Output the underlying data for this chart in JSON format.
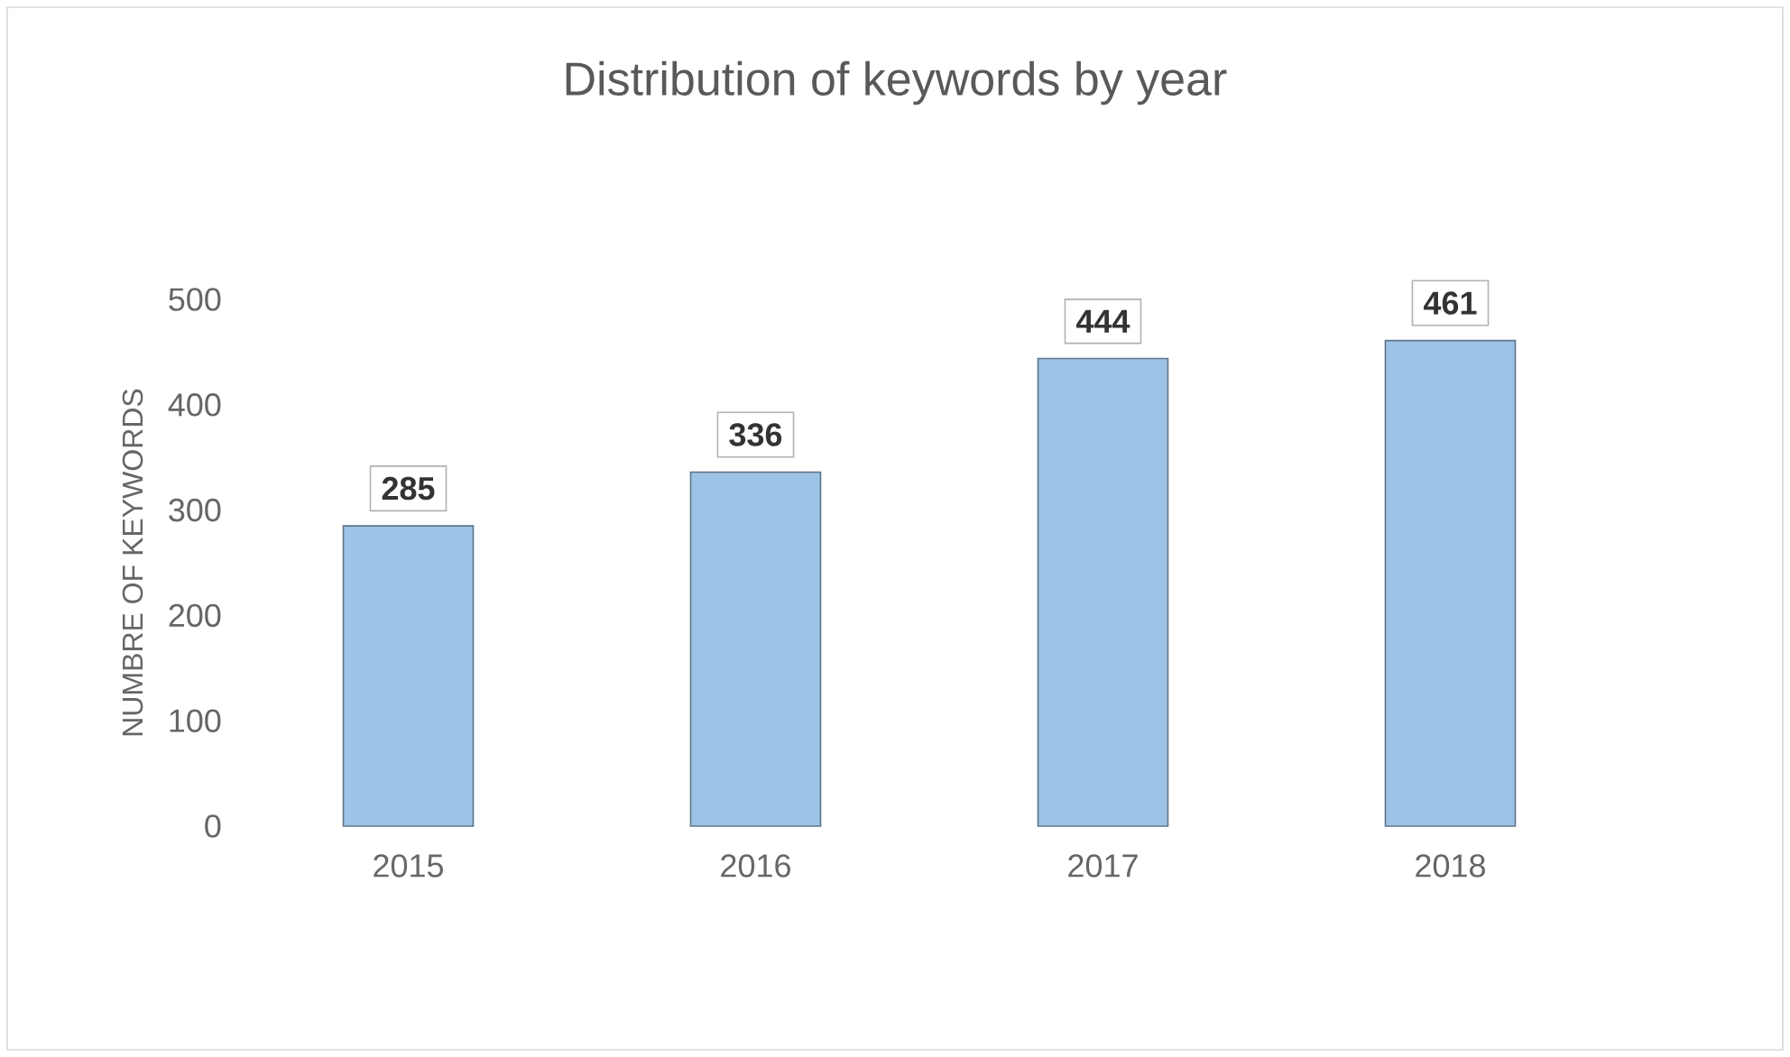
{
  "chart_data": {
    "type": "bar",
    "title": "Distribution  of keywords by year",
    "ylabel": "NUMBRE OF KEYWORDS",
    "categories": [
      "2015",
      "2016",
      "2017",
      "2018"
    ],
    "values": [
      285,
      336,
      444,
      461
    ],
    "color": "#9dc3e6",
    "ylim": [
      0,
      500
    ],
    "yticks": [
      0,
      100,
      200,
      300,
      400,
      500
    ],
    "data_labels": true
  }
}
